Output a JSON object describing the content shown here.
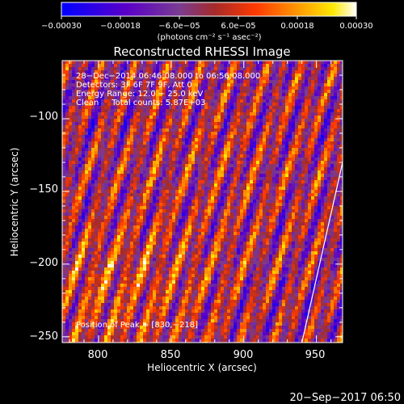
{
  "chart_data": {
    "type": "heatmap",
    "title": "Reconstructed RHESSI Image",
    "xlabel": "Heliocentric X (arcsec)",
    "ylabel": "Heliocentric Y (arcsec)",
    "xlim": [
      775,
      968
    ],
    "ylim": [
      -254,
      -60
    ],
    "x_ticks": [
      800,
      850,
      900,
      950
    ],
    "x_tick_labels": [
      "800",
      "850",
      "900",
      "950"
    ],
    "y_ticks": [
      -100,
      -150,
      -200,
      -250
    ],
    "y_tick_labels": [
      "−100",
      "−150",
      "−200",
      "−250"
    ],
    "colorbar": {
      "range": [
        -0.0003,
        0.0003
      ],
      "tick_labels": [
        "−0.00030",
        "−0.00018",
        "−6.0e−05",
        "6.0e−05",
        "0.00018",
        "0.00030"
      ],
      "units_label": "(photons cm⁻² s⁻¹ asec⁻²)",
      "colormap": [
        "#0000ff",
        "#5a00c8",
        "#7a3c92",
        "#a62a2a",
        "#ff3a00",
        "#ff9800",
        "#ffe800",
        "#ffffff"
      ]
    },
    "annotations": {
      "time_range": "28−Dec−2014 06:46:08.000 to 06:56:08.000",
      "detectors": "Detectors: 3F 6F 7F 9F, Att 0",
      "energy_range": "Energy Range: 12.0 − 25.0 keV",
      "method_counts": "Clean     Total counts: 5.87E+03",
      "peak_position": "Position of Peak = [830,−218]"
    },
    "peak": [
      830,
      -218
    ],
    "grid": false,
    "limb_line": {
      "points": [
        [
          940,
          -254
        ],
        [
          968,
          -130
        ]
      ]
    },
    "pattern": "striped interference fringes oriented diagonally (lower-left to upper-right), values spanning −0.0003 to 0.0003"
  },
  "footer": {
    "timestamp": "20−Sep−2017 06:50"
  }
}
